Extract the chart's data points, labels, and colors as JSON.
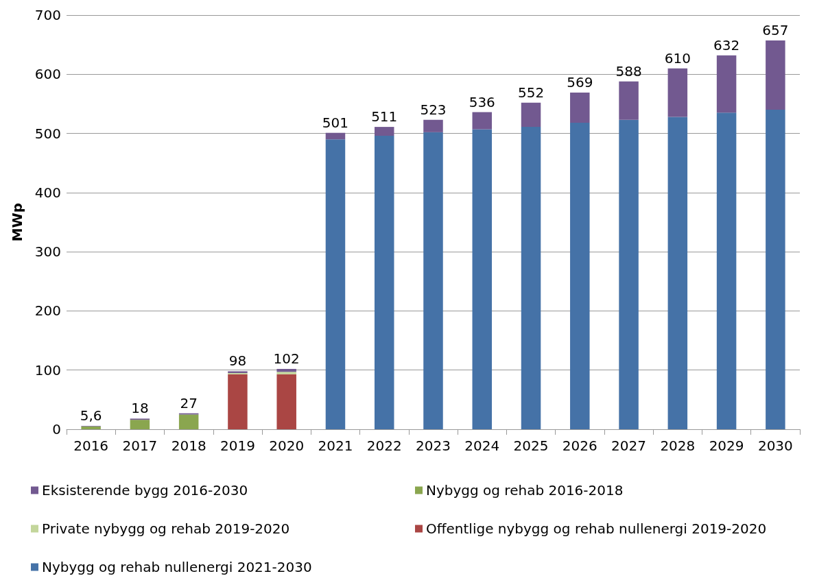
{
  "chart_data": {
    "type": "bar",
    "stacked": true,
    "ylabel": "MWp",
    "categories": [
      "2016",
      "2017",
      "2018",
      "2019",
      "2020",
      "2021",
      "2022",
      "2023",
      "2024",
      "2025",
      "2026",
      "2027",
      "2028",
      "2029",
      "2030"
    ],
    "series": [
      {
        "name": "Nybygg og rehab nullenergi 2021-2030",
        "color": "#4572a7",
        "values": [
          0,
          0,
          0,
          0,
          0,
          490,
          496,
          502,
          507,
          511,
          518,
          523,
          528,
          535,
          540
        ]
      },
      {
        "name": "Offentlige nybygg og rehab nullenergi 2019-2020",
        "color": "#aa4644",
        "values": [
          0,
          0,
          0,
          93,
          93,
          0,
          0,
          0,
          0,
          0,
          0,
          0,
          0,
          0,
          0
        ]
      },
      {
        "name": "Private nybygg og rehab 2019-2020",
        "color": "#c3d69b",
        "values": [
          0,
          0,
          0,
          2,
          4,
          0,
          0,
          0,
          0,
          0,
          0,
          0,
          0,
          0,
          0
        ]
      },
      {
        "name": "Nybygg og rehab 2016-2018",
        "color": "#8aa64f",
        "values": [
          4.6,
          16,
          25,
          0,
          0,
          0,
          0,
          0,
          0,
          0,
          0,
          0,
          0,
          0,
          0
        ]
      },
      {
        "name": "Eksisterende bygg 2016-2030",
        "color": "#725990",
        "values": [
          1,
          2,
          2,
          3,
          5,
          11,
          15,
          21,
          29,
          41,
          51,
          65,
          82,
          97,
          117
        ]
      }
    ],
    "totals": [
      "5,6",
      "18",
      "27",
      "98",
      "102",
      "501",
      "511",
      "523",
      "536",
      "552",
      "569",
      "588",
      "610",
      "632",
      "657"
    ],
    "ylim": [
      0,
      700
    ],
    "yticks": [
      0,
      100,
      200,
      300,
      400,
      500,
      600,
      700
    ],
    "grid": "y",
    "legend": "bottom"
  }
}
